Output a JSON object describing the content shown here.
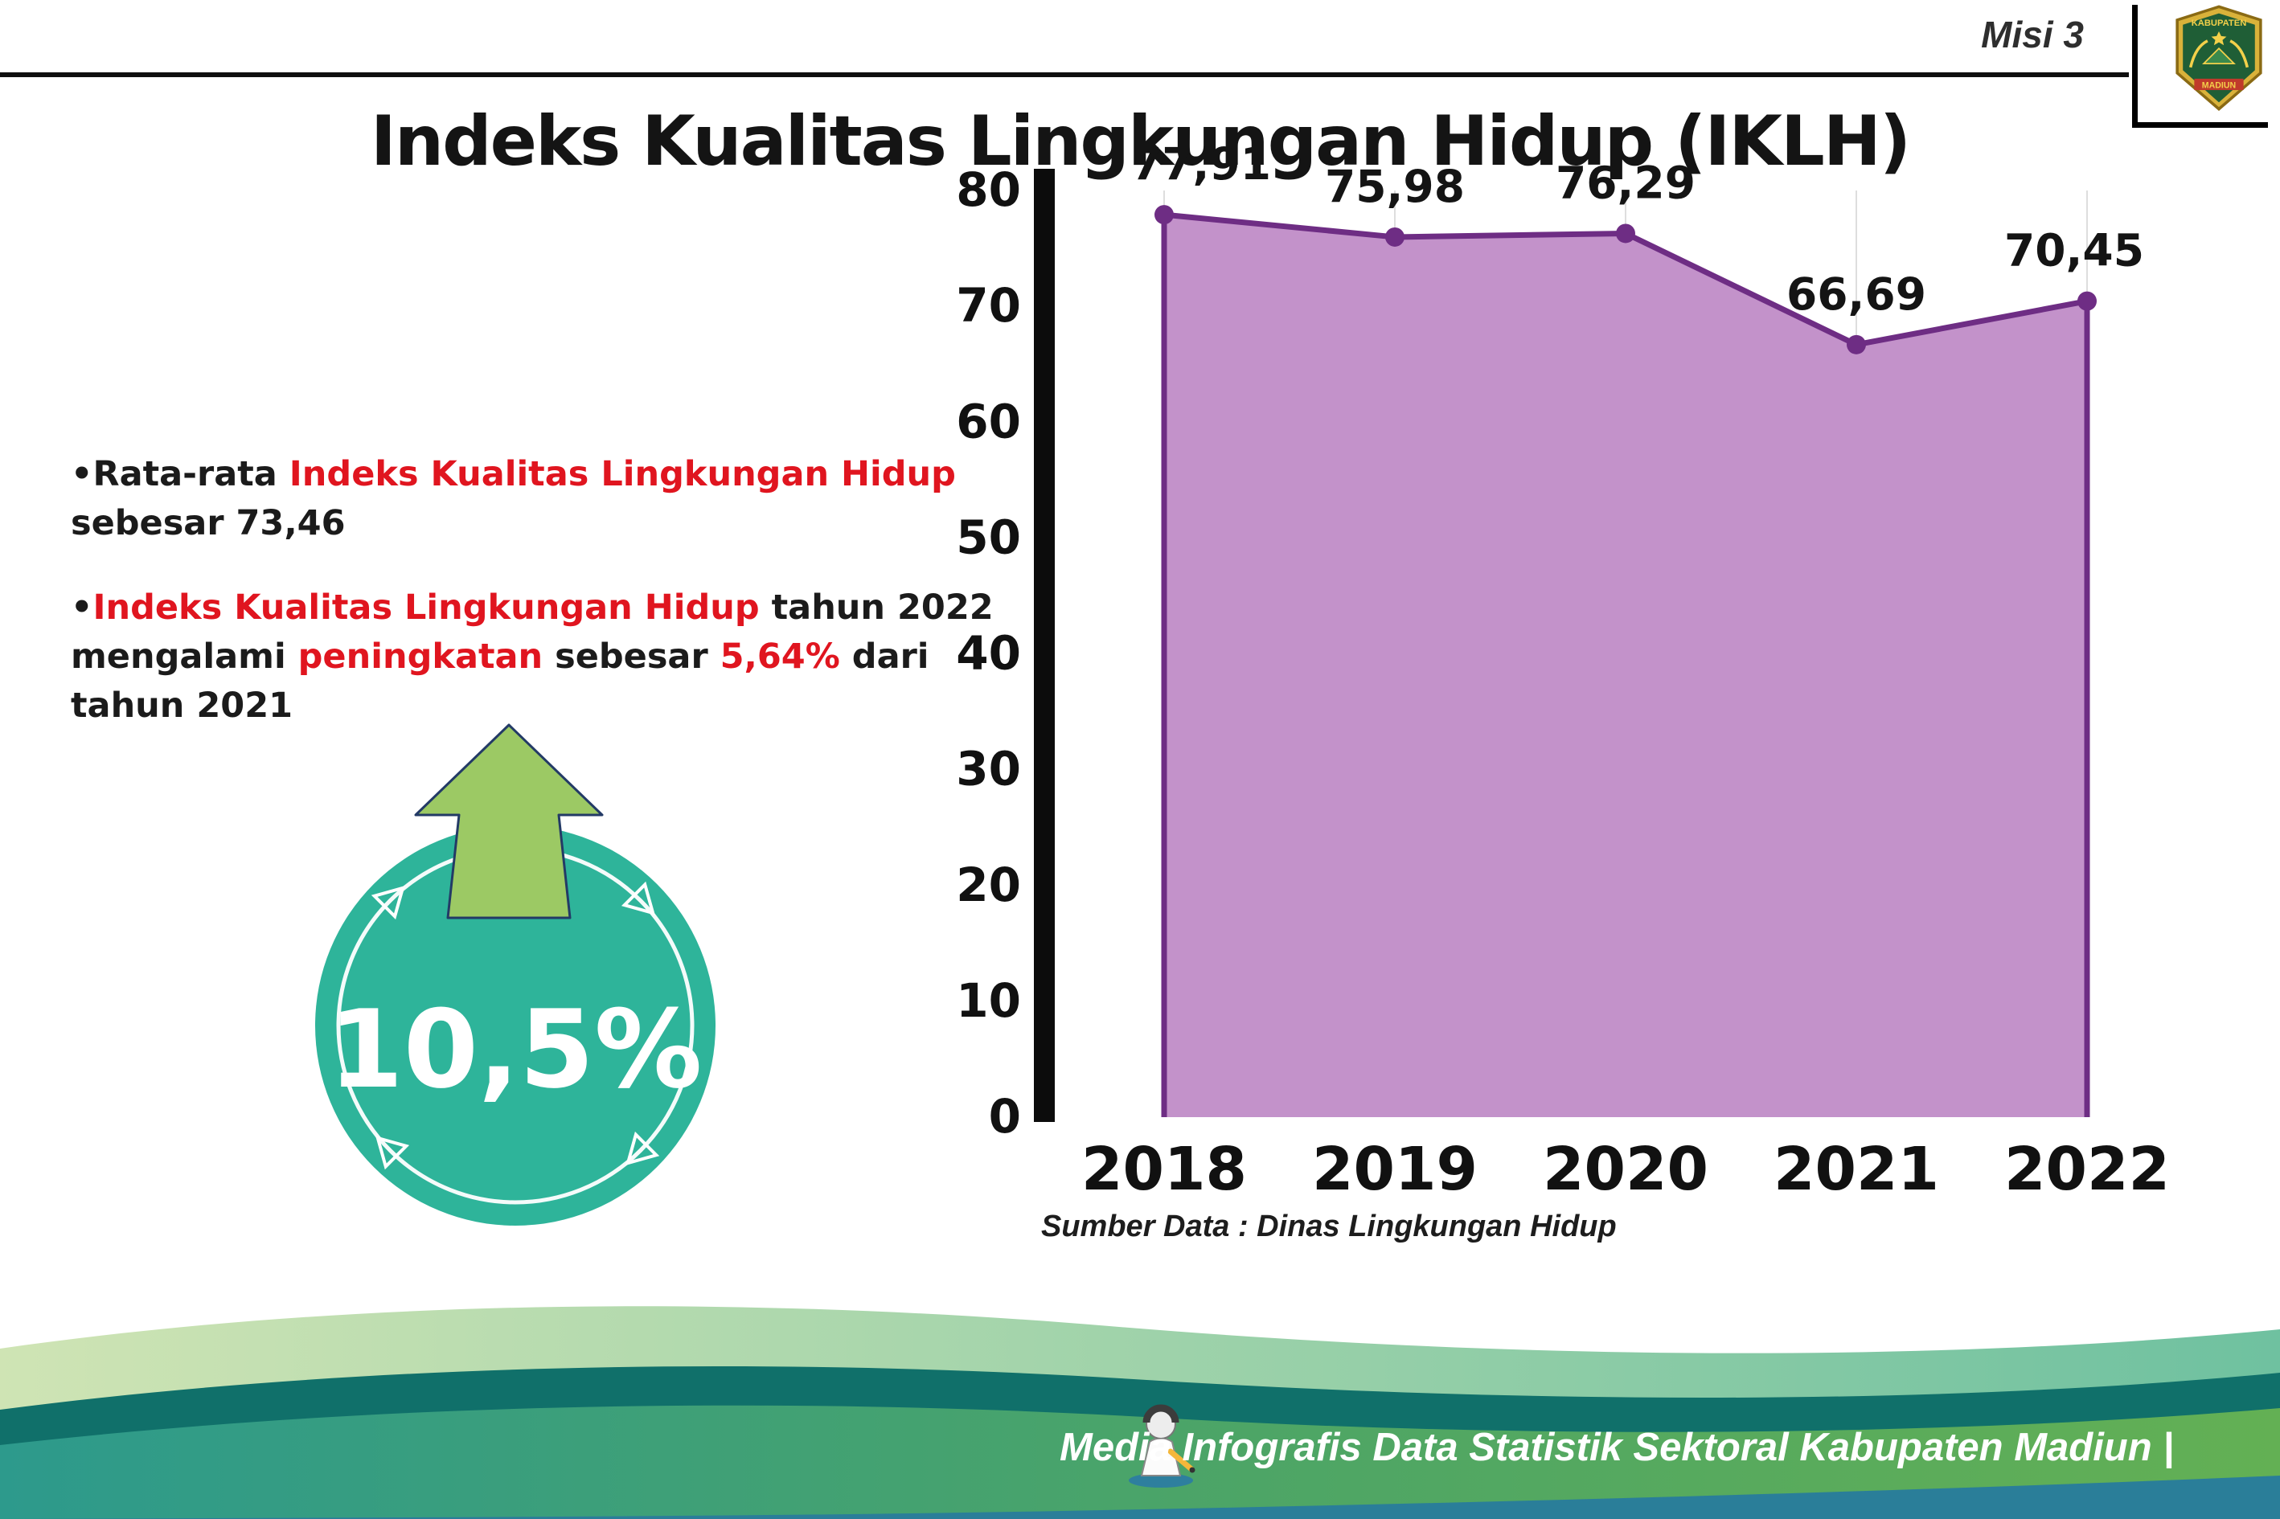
{
  "header": {
    "misi_label": "Misi 3",
    "title": "Indeks Kualitas Lingkungan Hidup (IKLH)",
    "logo_text_top": "KABUPATEN",
    "logo_text_bottom": "MADIUN"
  },
  "bullets": [
    {
      "segments": [
        {
          "text": "•Rata-rata ",
          "color": "black"
        },
        {
          "text": "Indeks Kualitas Lingkungan Hidup",
          "color": "red"
        },
        {
          "text": " sebesar 73,46",
          "color": "black"
        }
      ]
    },
    {
      "segments": [
        {
          "text": "•",
          "color": "black"
        },
        {
          "text": "Indeks Kualitas Lingkungan Hidup",
          "color": "red"
        },
        {
          "text": " tahun 2022 mengalami ",
          "color": "black"
        },
        {
          "text": "peningkatan",
          "color": "red"
        },
        {
          "text": " sebesar ",
          "color": "black"
        },
        {
          "text": "5,64%",
          "color": "red"
        },
        {
          "text": " dari tahun 2021",
          "color": "black"
        }
      ]
    }
  ],
  "badge": {
    "value": "10,5%"
  },
  "chart_data": {
    "type": "area",
    "categories": [
      "2018",
      "2019",
      "2020",
      "2021",
      "2022"
    ],
    "values": [
      77.91,
      75.98,
      76.29,
      66.69,
      70.45
    ],
    "value_labels": [
      "77,91",
      "75,98",
      "76,29",
      "66,69",
      "70,45"
    ],
    "ylim": [
      0,
      80
    ],
    "ytick_step": 10,
    "yticks": [
      "0",
      "10",
      "20",
      "30",
      "40",
      "50",
      "60",
      "70",
      "80"
    ],
    "title": "",
    "xlabel": "",
    "ylabel": "",
    "legend": "none",
    "grid": "faint-vertical",
    "area_color": "#c392ca",
    "line_color": "#6e2d84",
    "source": "Sumber Data : Dinas Lingkungan Hidup"
  },
  "footer": {
    "caption": "Media Infografis Data Statistik Sektoral Kabupaten Madiun |"
  },
  "colors": {
    "accent_red": "#e0151f",
    "badge_teal": "#2eb49a",
    "arrow_green": "#9cc964",
    "footer_teal": "#2d9a8c",
    "footer_green": "#63b054"
  }
}
